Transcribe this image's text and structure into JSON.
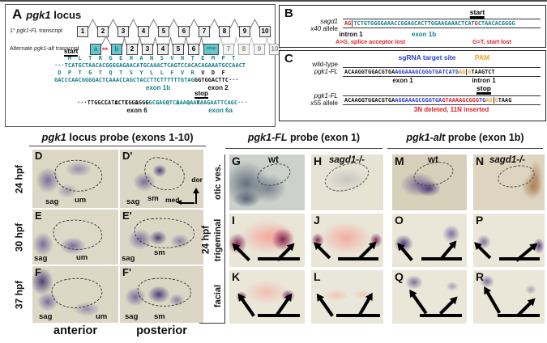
{
  "colors": {
    "teal_text": "#177f8d",
    "teal_box": "#67c4ca",
    "red": "#e02128",
    "blue": "#2b3fd8",
    "orange": "#efa02a"
  },
  "panelA": {
    "label": "A",
    "title": [
      {
        "t": "pgk1",
        "c": "i"
      },
      {
        "t": " locus",
        "c": ""
      }
    ],
    "fl_label": [
      {
        "t": "1° ",
        "c": ""
      },
      {
        "t": "pgk1-FL",
        "c": "i"
      },
      {
        "t": " transcript",
        "c": ""
      }
    ],
    "alt_label": [
      {
        "t": "Alternate ",
        "c": ""
      },
      {
        "t": "pgk1-alt",
        "c": "i"
      },
      {
        "t": " trasncript",
        "c": ""
      }
    ],
    "fl_exons": [
      "1",
      "2",
      "3",
      "4",
      "5",
      "6",
      "7",
      "8",
      "9",
      "10"
    ],
    "alt_exon_a": "a",
    "alt_marks": "**",
    "alt_exon_b": "b",
    "alt_exons_mid": [
      "2",
      "3",
      "4",
      "5",
      "6"
    ],
    "alt_stop": "stop",
    "alt_exons_fade": [
      "7",
      "8",
      "9",
      "10"
    ],
    "seq": {
      "start_label": "start",
      "aa1": [
        {
          "t": "    M  L  T  R  G  E  H  A  N  S  V  H  T  E  M  P  T",
          "c": "teal"
        }
      ],
      "dna1": [
        {
          "t": "···TCATGCTAACACGGGGAGAACATGCAAACTCAGTCCACACAGAAATGCCAACT",
          "c": "teal"
        }
      ],
      "aa2": [
        {
          "t": " D  P  T  G  T  Q  T  S  Y  L  L  F  V  R",
          "c": "teal"
        },
        {
          "t": "  V  D  F",
          "c": "blk"
        }
      ],
      "dna2": [
        {
          "t": "GACCCAACGGGGACTCAAACCAGCTACCTTCTTTTTTGTAG",
          "c": "teal"
        },
        {
          "t": "GGTGGACTTC···",
          "c": "blk"
        }
      ],
      "exon_1b": "exon 1b",
      "exon_2": "exon 2",
      "aa3": [
        {
          "t": "L  A  I  L  G",
          "c": "blk"
        },
        {
          "t": "  G  Q  G  Q  R",
          "c": "teal"
        }
      ],
      "stop_label": "stop",
      "dna3": [
        {
          "t": "···TTGGCCATCCTCGGAGG",
          "c": "blk"
        },
        {
          "t": "GGCCAGGTCAAAGAATAAGAATTCAGC···",
          "c": "teal"
        }
      ],
      "exon_6": "exon 6",
      "exon_6a": "exon 6a"
    }
  },
  "panelB": {
    "label": "B",
    "allele_1": "sagd1",
    "allele_2": [
      {
        "t": "x40",
        "c": "i"
      },
      {
        "t": " allele",
        "c": ""
      }
    ],
    "start_label": "start",
    "seq": [
      {
        "t": "AG",
        "c": "red"
      },
      {
        "t": "TCTGTGGGGAAACCGGAGCACTTGGAAGAAACTCAT",
        "c": "teal bnd"
      },
      {
        "t": "G",
        "c": "red"
      },
      {
        "t": "CTAACACGGGG",
        "c": "teal"
      }
    ],
    "intron": "intron 1",
    "exon": "exon 1b",
    "note_left": "A>G, splice acceptor lost",
    "note_right": "G>T, start lost"
  },
  "panelC": {
    "label": "C",
    "sgrna": "sgRNA target site",
    "pam": "PAM",
    "wt_1": "wild-type",
    "wt_2": "pgk1-FL",
    "seq_wt": [
      {
        "t": "ACAAGGTGGACGTGA",
        "c": "blk"
      },
      {
        "t": "AGGAAAGCGGGTGATCATG",
        "c": "blue"
      },
      {
        "t": "AG",
        "c": "org"
      },
      {
        "t": "G",
        "c": "org bnd"
      },
      {
        "t": "TAAGTCT",
        "c": "blk"
      }
    ],
    "exon": "exon 1",
    "intron": "intron 1",
    "stop_label": "stop",
    "mut_1": "pgk1-FL",
    "mut_2": [
      {
        "t": "x55",
        "c": "i"
      },
      {
        "t": " allele",
        "c": ""
      }
    ],
    "seq_mut": [
      {
        "t": "ACAAGGTGGACGTGA",
        "c": "blk"
      },
      {
        "t": "AGGAAAGCGGGTGA",
        "c": "blue"
      },
      {
        "t": "GTAAAAGCGGG",
        "c": "red"
      },
      {
        "t": "TG",
        "c": "blue"
      },
      {
        "t": "AG",
        "c": "org"
      },
      {
        "t": "G",
        "c": "org bnd"
      },
      {
        "t": "TAAG",
        "c": "blk"
      }
    ],
    "note": "3N deleted, 11N inserted"
  },
  "left_block": {
    "header": [
      {
        "t": "pgk1",
        "c": "i"
      },
      {
        "t": " locus probe (exons 1-10)",
        "c": ""
      }
    ],
    "times": [
      "24 hpf",
      "30 hpf",
      "37 hpf"
    ],
    "panels": {
      "D": {
        "letter": "D",
        "lab1": "sag",
        "lab2": "um"
      },
      "Dp": {
        "letter": "D'",
        "lab1": "sag",
        "lab2": "sm"
      },
      "E": {
        "letter": "E",
        "lab1": "sag",
        "lab2": "um"
      },
      "Ep": {
        "letter": "E'",
        "lab1": "sag",
        "lab2": "sm"
      },
      "F": {
        "letter": "F",
        "lab1": "sag",
        "lab2": "um"
      },
      "Fp": {
        "letter": "F'",
        "lab1": "sag",
        "lab2": "sm"
      }
    },
    "compass": {
      "up": "dor",
      "left": "med"
    },
    "footer_left": "anterior",
    "footer_right": "posterior"
  },
  "right_block": {
    "time": "24 hpf",
    "rows": [
      "otic ves.",
      "trigeminal",
      "facial"
    ],
    "header_fl": [
      {
        "t": "pgk1-FL",
        "c": "i"
      },
      {
        "t": " probe (exon 1)",
        "c": ""
      }
    ],
    "header_alt": [
      {
        "t": "pgk1-alt",
        "c": "i"
      },
      {
        "t": " probe (exon 1b)",
        "c": ""
      }
    ],
    "panels": {
      "G": {
        "letter": "G",
        "gen": "wt"
      },
      "H": {
        "letter": "H",
        "gen": "sagd1-/-"
      },
      "M": {
        "letter": "M",
        "gen": "wt"
      },
      "N": {
        "letter": "N",
        "gen": "sagd1-/-"
      },
      "I": {
        "letter": "I"
      },
      "J": {
        "letter": "J"
      },
      "O": {
        "letter": "O"
      },
      "P": {
        "letter": "P"
      },
      "K": {
        "letter": "K"
      },
      "L": {
        "letter": "L"
      },
      "Q": {
        "letter": "Q"
      },
      "R": {
        "letter": "R"
      }
    }
  }
}
